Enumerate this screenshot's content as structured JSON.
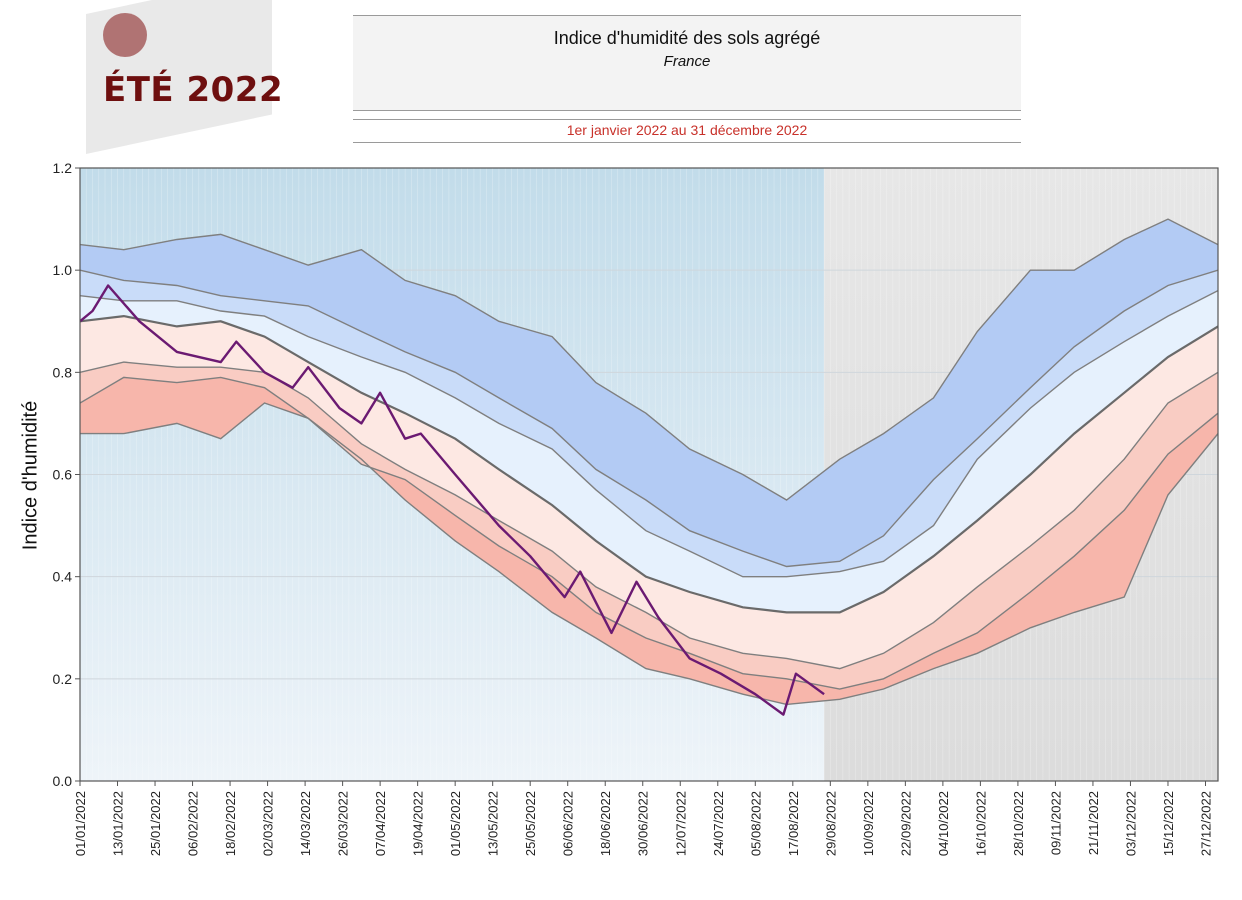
{
  "logo": {
    "text": "ÉTÉ 2022"
  },
  "header": {
    "title": "Indice d'humidité des sols agrégé",
    "subtitle": "France",
    "period": "1er janvier 2022 au 31 décembre 2022"
  },
  "colors": {
    "record_low_band": "#f7b6ab",
    "decile_low_band": "#f9ccc3",
    "below_median_band": "#fde8e3",
    "above_median_band": "#e6f1fd",
    "decile_high_band": "#c9dcf9",
    "record_high_band": "#b3cbf4",
    "band_line": "#7f7f7f",
    "median_line": "#6a6a6a",
    "year_2022_line": "#6b1a72",
    "past_background": "#c9e0ec",
    "future_background": "#e3e3e3"
  },
  "chart_data": {
    "type": "area",
    "title": "",
    "xlabel": "",
    "ylabel": "Indice d'humidité",
    "ylim": [
      0,
      1.2
    ],
    "yticks": [
      "0.0",
      "0.2",
      "0.4",
      "0.6",
      "0.8",
      "1.0",
      "1.2"
    ],
    "xticks": [
      "01/01/2022",
      "13/01/2022",
      "25/01/2022",
      "06/02/2022",
      "18/02/2022",
      "02/03/2022",
      "14/03/2022",
      "26/03/2022",
      "07/04/2022",
      "19/04/2022",
      "01/05/2022",
      "13/05/2022",
      "25/05/2022",
      "06/06/2022",
      "18/06/2022",
      "30/06/2022",
      "12/07/2022",
      "24/07/2022",
      "05/08/2022",
      "17/08/2022",
      "29/08/2022",
      "10/09/2022",
      "22/09/2022",
      "04/10/2022",
      "16/10/2022",
      "28/10/2022",
      "09/11/2022",
      "21/11/2022",
      "03/12/2022",
      "15/12/2022",
      "27/12/2022"
    ],
    "last_observed_date": "27/08/2022",
    "x": [
      "01/01/2022",
      "15/01/2022",
      "01/02/2022",
      "15/02/2022",
      "01/03/2022",
      "15/03/2022",
      "01/04/2022",
      "15/04/2022",
      "01/05/2022",
      "15/05/2022",
      "01/06/2022",
      "15/06/2022",
      "01/07/2022",
      "15/07/2022",
      "01/08/2022",
      "15/08/2022",
      "01/09/2022",
      "15/09/2022",
      "01/10/2022",
      "15/10/2022",
      "01/11/2022",
      "15/11/2022",
      "01/12/2022",
      "15/12/2022",
      "31/12/2022"
    ],
    "series": [
      {
        "values": [
          0.68,
          0.68,
          0.7,
          0.67,
          0.74,
          0.71,
          0.63,
          0.55,
          0.47,
          0.41,
          0.33,
          0.28,
          0.22,
          0.2,
          0.17,
          0.15,
          0.16,
          0.18,
          0.22,
          0.25,
          0.3,
          0.33,
          0.36,
          0.56,
          0.68
        ]
      },
      {
        "values": [
          0.74,
          0.79,
          0.78,
          0.79,
          0.77,
          0.71,
          0.62,
          0.59,
          0.52,
          0.46,
          0.4,
          0.33,
          0.28,
          0.25,
          0.21,
          0.2,
          0.18,
          0.2,
          0.25,
          0.29,
          0.37,
          0.44,
          0.53,
          0.64,
          0.72
        ]
      },
      {
        "values": [
          0.8,
          0.82,
          0.81,
          0.81,
          0.8,
          0.75,
          0.66,
          0.61,
          0.56,
          0.51,
          0.45,
          0.38,
          0.33,
          0.28,
          0.25,
          0.24,
          0.22,
          0.25,
          0.31,
          0.38,
          0.46,
          0.53,
          0.63,
          0.74,
          0.8
        ]
      },
      {
        "values": [
          0.9,
          0.91,
          0.89,
          0.9,
          0.87,
          0.82,
          0.76,
          0.72,
          0.67,
          0.61,
          0.54,
          0.47,
          0.4,
          0.37,
          0.34,
          0.33,
          0.33,
          0.37,
          0.44,
          0.51,
          0.6,
          0.68,
          0.76,
          0.83,
          0.89
        ]
      },
      {
        "values": [
          0.95,
          0.94,
          0.94,
          0.92,
          0.91,
          0.87,
          0.83,
          0.8,
          0.75,
          0.7,
          0.65,
          0.57,
          0.49,
          0.45,
          0.4,
          0.4,
          0.41,
          0.43,
          0.5,
          0.63,
          0.73,
          0.8,
          0.86,
          0.91,
          0.96
        ]
      },
      {
        "values": [
          1.0,
          0.98,
          0.97,
          0.95,
          0.94,
          0.93,
          0.88,
          0.84,
          0.8,
          0.75,
          0.69,
          0.61,
          0.55,
          0.49,
          0.45,
          0.42,
          0.43,
          0.48,
          0.59,
          0.67,
          0.77,
          0.85,
          0.92,
          0.97,
          1.0
        ]
      },
      {
        "values": [
          1.05,
          1.04,
          1.06,
          1.07,
          1.04,
          1.01,
          1.04,
          0.98,
          0.95,
          0.9,
          0.87,
          0.78,
          0.72,
          0.65,
          0.6,
          0.55,
          0.63,
          0.68,
          0.75,
          0.88,
          1.0,
          1.0,
          1.06,
          1.1,
          1.05
        ]
      }
    ],
    "year_2022": {
      "x": [
        "01/01/2022",
        "05/01/2022",
        "10/01/2022",
        "20/01/2022",
        "01/02/2022",
        "15/02/2022",
        "20/02/2022",
        "01/03/2022",
        "10/03/2022",
        "15/03/2022",
        "25/03/2022",
        "01/04/2022",
        "07/04/2022",
        "15/04/2022",
        "20/04/2022",
        "01/05/2022",
        "15/05/2022",
        "25/05/2022",
        "05/06/2022",
        "10/06/2022",
        "20/06/2022",
        "28/06/2022",
        "05/07/2022",
        "15/07/2022",
        "25/07/2022",
        "05/08/2022",
        "14/08/2022",
        "18/08/2022",
        "27/08/2022"
      ],
      "values": [
        0.9,
        0.92,
        0.97,
        0.9,
        0.84,
        0.82,
        0.86,
        0.8,
        0.77,
        0.81,
        0.73,
        0.7,
        0.76,
        0.67,
        0.68,
        0.6,
        0.5,
        0.44,
        0.36,
        0.41,
        0.29,
        0.39,
        0.32,
        0.24,
        0.21,
        0.17,
        0.13,
        0.21,
        0.17
      ]
    }
  }
}
